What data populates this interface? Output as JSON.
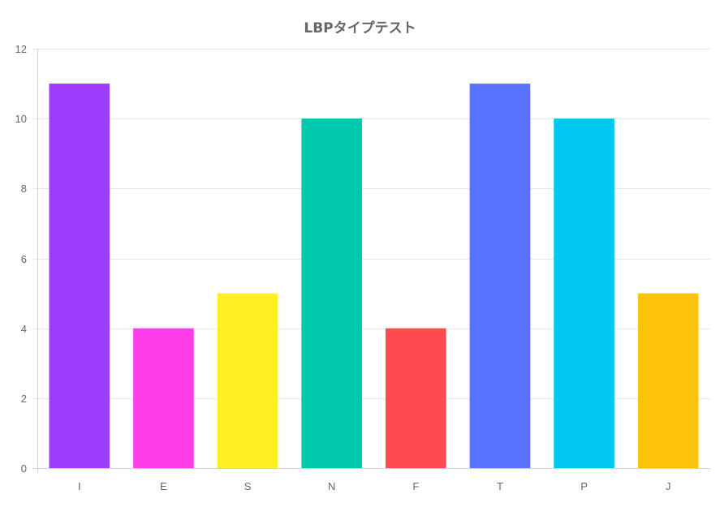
{
  "chart_data": {
    "type": "bar",
    "title": "LBPタイプテスト",
    "categories": [
      "I",
      "E",
      "S",
      "N",
      "F",
      "T",
      "P",
      "J"
    ],
    "values": [
      11,
      4,
      5,
      10,
      4,
      11,
      10,
      5
    ],
    "colors": [
      "#9f3dff",
      "#ff3de8",
      "#ffee22",
      "#00c9ae",
      "#ff4b4f",
      "#5873ff",
      "#00c8f0",
      "#ffc20a"
    ],
    "ylim": [
      0,
      12
    ],
    "yticks": [
      0,
      2,
      4,
      6,
      8,
      10,
      12
    ],
    "xlabel": "",
    "ylabel": "",
    "grid": true,
    "legend": "none"
  }
}
